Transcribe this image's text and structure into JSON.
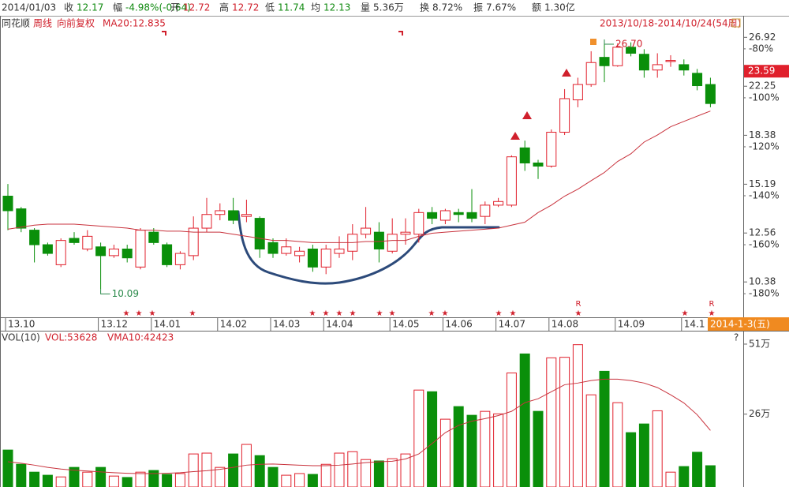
{
  "info_bar": {
    "date": "2014/01/03",
    "items": [
      {
        "label": "收",
        "value": 12.17,
        "color": "#108a10"
      },
      {
        "label": "幅",
        "value": "-4.98%(-0.64)",
        "color": "#108a10"
      },
      {
        "label": "开",
        "value": 12.72,
        "color": "#d0202c"
      },
      {
        "label": "高",
        "value": 12.72,
        "color": "#d0202c"
      },
      {
        "label": "低",
        "value": 11.74,
        "color": "#108a10"
      },
      {
        "label": "均",
        "value": 12.13,
        "color": "#108a10"
      },
      {
        "label": "量",
        "value": "5.36万",
        "color": "#333333"
      },
      {
        "label": "换",
        "value": "8.72%",
        "color": "#333333"
      },
      {
        "label": "振",
        "value": "7.67%",
        "color": "#333333"
      },
      {
        "label": "额",
        "value": "1.30亿",
        "color": "#333333"
      }
    ]
  },
  "toolbar": {
    "name": "同花顺",
    "period": "周线",
    "adjust": "向前复权"
  },
  "help": "?",
  "chart_data": [
    {
      "type": "candlestick",
      "subtitle": "2013/10/18-2014/10/24(54周)",
      "log_scale": true,
      "up_color": "#e0202c",
      "down_color": "#0a8f0a",
      "categories": [
        "13.10",
        null,
        null,
        null,
        null,
        null,
        null,
        "13.12",
        null,
        null,
        null,
        "14.01",
        null,
        null,
        null,
        null,
        "14.02",
        null,
        null,
        null,
        "14.03",
        null,
        null,
        null,
        "14.04",
        null,
        null,
        null,
        null,
        "14.05",
        null,
        null,
        null,
        "14.06",
        null,
        null,
        null,
        "14.07",
        null,
        null,
        null,
        "14.08",
        null,
        null,
        null,
        null,
        "14.09",
        null,
        null,
        null,
        null,
        "14.1",
        null,
        null
      ],
      "open": [
        14.5,
        13.8,
        12.7,
        12.0,
        11.1,
        12.3,
        11.8,
        11.9,
        11.5,
        11.8,
        11.0,
        12.6,
        12.0,
        11.1,
        11.5,
        12.8,
        13.5,
        13.7,
        13.4,
        13.3,
        12.1,
        11.6,
        11.5,
        11.8,
        11.0,
        11.6,
        11.7,
        12.5,
        12.6,
        11.7,
        12.5,
        12.5,
        13.6,
        13.2,
        13.6,
        13.6,
        13.4,
        14.0,
        14.0,
        17.5,
        16.5,
        16.3,
        18.6,
        21.1,
        22.4,
        24.9,
        24.1,
        25.9,
        25.2,
        23.7,
        24.5,
        24.2,
        23.4,
        22.4
      ],
      "high": [
        15.2,
        13.9,
        12.8,
        12.1,
        12.3,
        12.6,
        12.7,
        12.1,
        12.0,
        12.0,
        12.8,
        12.8,
        12.1,
        11.7,
        13.4,
        14.4,
        14.1,
        14.4,
        14.3,
        13.4,
        12.3,
        12.3,
        11.9,
        12.0,
        12.0,
        12.4,
        13.0,
        13.9,
        13.1,
        13.3,
        13.3,
        13.8,
        13.9,
        13.8,
        13.8,
        14.9,
        14.2,
        14.4,
        17.0,
        18.0,
        16.7,
        18.8,
        22.0,
        23.0,
        25.5,
        26.7,
        26.3,
        26.4,
        25.7,
        25.3,
        25.1,
        24.7,
        23.8,
        23.0
      ],
      "low": [
        12.7,
        12.6,
        11.2,
        11.5,
        11.0,
        12.0,
        11.7,
        10.09,
        11.4,
        11.2,
        10.9,
        12.0,
        11.0,
        10.9,
        11.3,
        12.6,
        13.2,
        13.0,
        13.1,
        11.4,
        11.4,
        11.5,
        11.2,
        10.8,
        10.7,
        11.4,
        11.3,
        12.3,
        11.2,
        11.6,
        12.0,
        12.1,
        13.0,
        13.0,
        13.1,
        13.1,
        13.0,
        13.9,
        13.9,
        16.0,
        15.5,
        16.2,
        18.4,
        20.5,
        22.2,
        22.6,
        24.0,
        25.0,
        23.0,
        23.0,
        24.0,
        23.2,
        21.9,
        20.5
      ],
      "close": [
        13.7,
        12.8,
        12.0,
        11.6,
        12.2,
        12.1,
        12.4,
        11.5,
        11.8,
        11.4,
        12.7,
        12.1,
        11.1,
        11.6,
        12.8,
        13.5,
        13.7,
        13.2,
        13.5,
        11.8,
        11.6,
        11.9,
        11.7,
        11.0,
        11.8,
        11.8,
        12.5,
        12.8,
        11.8,
        12.5,
        12.6,
        13.6,
        13.3,
        13.7,
        13.5,
        13.3,
        14.0,
        14.2,
        16.9,
        16.5,
        16.3,
        18.6,
        21.2,
        22.4,
        24.4,
        24.1,
        25.9,
        25.3,
        23.7,
        24.2,
        24.6,
        23.7,
        22.3,
        20.8
      ],
      "lines": [
        {
          "name": "MA20:12.835",
          "color": "#c8323c",
          "values": [
            12.75,
            12.85,
            12.95,
            13.0,
            13.0,
            13.0,
            12.95,
            12.9,
            12.85,
            12.8,
            12.7,
            12.7,
            12.65,
            12.65,
            12.6,
            12.6,
            12.6,
            12.5,
            12.4,
            12.3,
            12.2,
            12.2,
            12.15,
            12.1,
            12.1,
            12.1,
            12.1,
            12.15,
            12.15,
            12.2,
            12.2,
            12.4,
            12.55,
            12.6,
            12.65,
            12.7,
            12.75,
            12.8,
            12.95,
            13.1,
            13.6,
            14.0,
            14.5,
            14.9,
            15.4,
            15.9,
            16.6,
            17.1,
            17.9,
            18.4,
            19.0,
            19.4,
            19.8,
            20.2
          ]
        }
      ],
      "annotations": [
        {
          "value": 10.09,
          "label": "10.09"
        },
        {
          "value": 26.7,
          "label": "26.70"
        }
      ],
      "last_price": 23.59,
      "cursor_label": "2014-1-3(五)",
      "ylim": [
        9.1,
        27.7
      ],
      "yticks": [
        26.92,
        22.25,
        18.38,
        15.19,
        12.56,
        10.38
      ],
      "y2lim": [
        -189,
        -72.3
      ],
      "y2ticks": [
        {
          "value": -80,
          "label": "-80%"
        },
        {
          "value": -100,
          "label": "-100%"
        },
        {
          "value": -120,
          "label": "-120%"
        },
        {
          "value": -140,
          "label": "-140%"
        },
        {
          "value": -160,
          "label": "-160%"
        },
        {
          "value": -180,
          "label": "-180%"
        }
      ]
    },
    {
      "type": "bar",
      "title": "VOL(10)",
      "subtitle": "VOL:53628",
      "values": [
        13.2,
        8.1,
        5.3,
        4.2,
        3.6,
        7.0,
        5.3,
        7.0,
        3.9,
        3.4,
        5.3,
        5.9,
        4.5,
        4.8,
        11.8,
        12.1,
        7.0,
        11.8,
        15.2,
        11.2,
        7.0,
        4.2,
        4.8,
        4.5,
        8.1,
        12.1,
        12.6,
        9.8,
        9.3,
        10.1,
        11.8,
        34.6,
        34.0,
        24.2,
        28.7,
        25.6,
        27.0,
        26.1,
        40.7,
        47.5,
        27.0,
        46.1,
        46.3,
        50.8,
        32.9,
        41.3,
        30.1,
        19.4,
        22.5,
        27.2,
        5.3,
        7.3,
        12.4,
        7.6
      ],
      "lines": [
        {
          "name": "VMA10:42423",
          "color": "#c8323c",
          "values": [
            9.0,
            8.5,
            7.8,
            7.0,
            6.4,
            6.0,
            5.7,
            5.4,
            5.1,
            4.9,
            4.8,
            4.8,
            4.9,
            5.1,
            5.5,
            5.8,
            6.3,
            7.0,
            7.8,
            8.1,
            8.2,
            8.0,
            7.8,
            7.6,
            7.6,
            7.8,
            8.2,
            8.7,
            9.0,
            9.2,
            10.0,
            11.8,
            15.5,
            19.4,
            22.0,
            23.5,
            24.4,
            25.5,
            27.0,
            30.1,
            31.5,
            34.0,
            36.5,
            37.1,
            38.0,
            38.5,
            38.5,
            38.0,
            37.1,
            35.5,
            32.9,
            30.0,
            25.8,
            20.2
          ]
        }
      ],
      "ylim": [
        0,
        52.4
      ],
      "yticks": [
        {
          "value": 51,
          "label": "51万"
        },
        {
          "value": 26,
          "label": "26万"
        }
      ]
    }
  ]
}
